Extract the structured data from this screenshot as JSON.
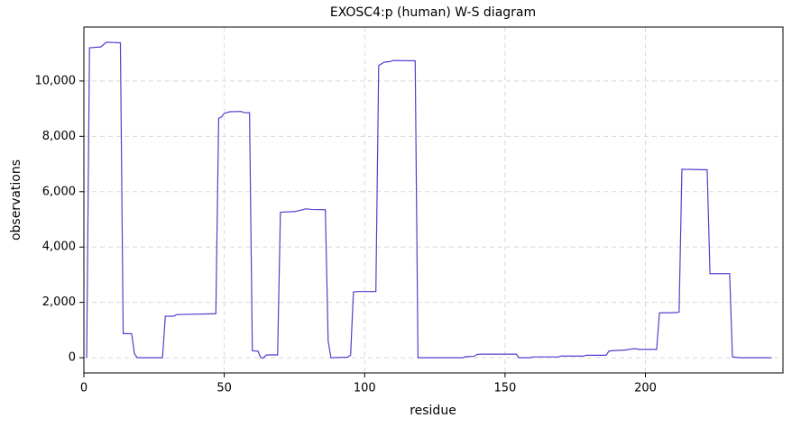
{
  "chart_data": {
    "type": "line",
    "title": "EXOSC4:p (human) W-S diagram",
    "xlabel": "residue",
    "ylabel": "observations",
    "color": "#5b3acf",
    "grid": true,
    "xlim": [
      0,
      249
    ],
    "ylim": [
      -550,
      11950
    ],
    "xticks": [
      0,
      50,
      100,
      150,
      200
    ],
    "yticks": [
      0,
      {
        "value": 2000,
        "label": "2,000"
      },
      {
        "value": 4000,
        "label": "4,000"
      },
      {
        "value": 6000,
        "label": "6,000"
      },
      {
        "value": 8000,
        "label": "8,000"
      },
      {
        "value": 10000,
        "label": "10,000"
      }
    ],
    "x": [
      1,
      2,
      6,
      8,
      13,
      14,
      17,
      18,
      19,
      28,
      29,
      32,
      33,
      47,
      48,
      49,
      50,
      52,
      56,
      57,
      59,
      60,
      62,
      63,
      64,
      65,
      69,
      70,
      75,
      78,
      79,
      81,
      86,
      87,
      88,
      94,
      95,
      96,
      97,
      104,
      105,
      106,
      107,
      109,
      110,
      118,
      119,
      135,
      136,
      139,
      140,
      142,
      154,
      155,
      159,
      160,
      169,
      170,
      178,
      179,
      186,
      187,
      189,
      193,
      196,
      198,
      204,
      205,
      211,
      212,
      213,
      222,
      223,
      230,
      231,
      234,
      245
    ],
    "values": [
      0,
      11200,
      11230,
      11400,
      11380,
      870,
      870,
      150,
      0,
      0,
      1500,
      1500,
      1560,
      1590,
      8650,
      8700,
      8830,
      8890,
      8900,
      8860,
      8850,
      250,
      240,
      0,
      0,
      100,
      100,
      5260,
      5280,
      5350,
      5380,
      5360,
      5350,
      600,
      0,
      20,
      100,
      2370,
      2390,
      2390,
      10560,
      10620,
      10680,
      10700,
      10740,
      10730,
      0,
      0,
      40,
      50,
      120,
      130,
      130,
      0,
      0,
      30,
      30,
      60,
      60,
      90,
      90,
      240,
      260,
      280,
      330,
      300,
      300,
      1620,
      1630,
      1650,
      6810,
      6790,
      3040,
      3040,
      30,
      0,
      0
    ]
  }
}
